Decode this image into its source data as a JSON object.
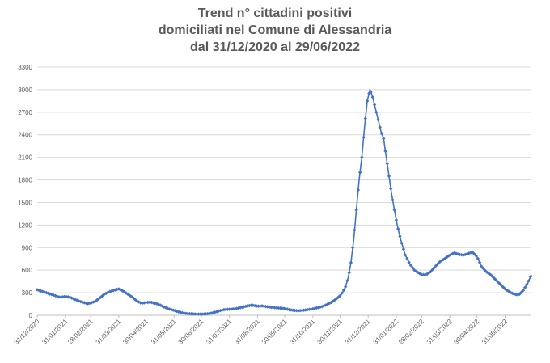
{
  "chart_data": {
    "type": "line",
    "title_lines": [
      "Trend n° cittadini positivi",
      "domiciliati nel Comune di Alessandria",
      "dal 31/12/2020 al 29/06/2022"
    ],
    "xlabel": "",
    "ylabel": "",
    "ylim": [
      0,
      3300
    ],
    "yticks": [
      0,
      300,
      600,
      900,
      1200,
      1500,
      1800,
      2100,
      2400,
      2700,
      3000,
      3300
    ],
    "grid": true,
    "legend": "none",
    "x_range": [
      "2020-12-31",
      "2022-06-29"
    ],
    "x_tick_labels": [
      "31/12/2020",
      "31/01/2021",
      "28/02/2021",
      "31/03/2021",
      "30/04/2021",
      "31/05/2021",
      "30/06/2021",
      "31/07/2021",
      "31/08/2021",
      "30/09/2021",
      "31/10/2021",
      "30/11/2021",
      "31/12/2021",
      "31/01/2022",
      "28/02/2022",
      "31/03/2022",
      "30/04/2022",
      "31/05/2022"
    ],
    "x_tick_dates": [
      "2020-12-31",
      "2021-01-31",
      "2021-02-28",
      "2021-03-31",
      "2021-04-30",
      "2021-05-31",
      "2021-06-30",
      "2021-07-31",
      "2021-08-31",
      "2021-09-30",
      "2021-10-31",
      "2021-11-30",
      "2021-12-31",
      "2022-01-31",
      "2022-02-28",
      "2022-03-31",
      "2022-04-30",
      "2022-05-31"
    ],
    "series_color": "#4472c4",
    "series": [
      {
        "name": "",
        "points": [
          [
            "2020-12-31",
            340
          ],
          [
            "2021-01-05",
            320
          ],
          [
            "2021-01-10",
            300
          ],
          [
            "2021-01-15",
            280
          ],
          [
            "2021-01-20",
            260
          ],
          [
            "2021-01-25",
            240
          ],
          [
            "2021-01-31",
            250
          ],
          [
            "2021-02-05",
            240
          ],
          [
            "2021-02-10",
            215
          ],
          [
            "2021-02-15",
            190
          ],
          [
            "2021-02-20",
            170
          ],
          [
            "2021-02-25",
            155
          ],
          [
            "2021-02-28",
            165
          ],
          [
            "2021-03-05",
            185
          ],
          [
            "2021-03-10",
            230
          ],
          [
            "2021-03-15",
            280
          ],
          [
            "2021-03-20",
            310
          ],
          [
            "2021-03-25",
            330
          ],
          [
            "2021-03-31",
            350
          ],
          [
            "2021-04-05",
            320
          ],
          [
            "2021-04-10",
            280
          ],
          [
            "2021-04-15",
            240
          ],
          [
            "2021-04-20",
            190
          ],
          [
            "2021-04-25",
            160
          ],
          [
            "2021-04-30",
            170
          ],
          [
            "2021-05-05",
            175
          ],
          [
            "2021-05-10",
            160
          ],
          [
            "2021-05-15",
            140
          ],
          [
            "2021-05-20",
            110
          ],
          [
            "2021-05-25",
            85
          ],
          [
            "2021-05-31",
            65
          ],
          [
            "2021-06-05",
            45
          ],
          [
            "2021-06-10",
            30
          ],
          [
            "2021-06-15",
            22
          ],
          [
            "2021-06-20",
            18
          ],
          [
            "2021-06-25",
            15
          ],
          [
            "2021-06-30",
            15
          ],
          [
            "2021-07-05",
            18
          ],
          [
            "2021-07-10",
            25
          ],
          [
            "2021-07-15",
            40
          ],
          [
            "2021-07-20",
            60
          ],
          [
            "2021-07-25",
            75
          ],
          [
            "2021-07-31",
            80
          ],
          [
            "2021-08-05",
            85
          ],
          [
            "2021-08-10",
            95
          ],
          [
            "2021-08-15",
            110
          ],
          [
            "2021-08-20",
            125
          ],
          [
            "2021-08-25",
            135
          ],
          [
            "2021-08-31",
            120
          ],
          [
            "2021-09-05",
            125
          ],
          [
            "2021-09-10",
            115
          ],
          [
            "2021-09-15",
            105
          ],
          [
            "2021-09-20",
            100
          ],
          [
            "2021-09-25",
            95
          ],
          [
            "2021-09-30",
            90
          ],
          [
            "2021-10-05",
            75
          ],
          [
            "2021-10-10",
            65
          ],
          [
            "2021-10-15",
            60
          ],
          [
            "2021-10-20",
            65
          ],
          [
            "2021-10-25",
            75
          ],
          [
            "2021-10-31",
            85
          ],
          [
            "2021-11-05",
            100
          ],
          [
            "2021-11-10",
            115
          ],
          [
            "2021-11-15",
            140
          ],
          [
            "2021-11-20",
            170
          ],
          [
            "2021-11-25",
            210
          ],
          [
            "2021-11-30",
            260
          ],
          [
            "2021-12-03",
            310
          ],
          [
            "2021-12-06",
            380
          ],
          [
            "2021-12-09",
            500
          ],
          [
            "2021-12-12",
            700
          ],
          [
            "2021-12-15",
            1000
          ],
          [
            "2021-12-18",
            1400
          ],
          [
            "2021-12-21",
            1800
          ],
          [
            "2021-12-24",
            2100
          ],
          [
            "2021-12-27",
            2500
          ],
          [
            "2021-12-30",
            2850
          ],
          [
            "2022-01-02",
            3000
          ],
          [
            "2022-01-05",
            2900
          ],
          [
            "2022-01-08",
            2750
          ],
          [
            "2022-01-11",
            2600
          ],
          [
            "2022-01-14",
            2450
          ],
          [
            "2022-01-17",
            2350
          ],
          [
            "2022-01-20",
            2100
          ],
          [
            "2022-01-23",
            1850
          ],
          [
            "2022-01-26",
            1600
          ],
          [
            "2022-01-29",
            1400
          ],
          [
            "2022-02-01",
            1200
          ],
          [
            "2022-02-05",
            1000
          ],
          [
            "2022-02-10",
            800
          ],
          [
            "2022-02-15",
            680
          ],
          [
            "2022-02-20",
            600
          ],
          [
            "2022-02-25",
            560
          ],
          [
            "2022-02-28",
            540
          ],
          [
            "2022-03-05",
            540
          ],
          [
            "2022-03-10",
            580
          ],
          [
            "2022-03-15",
            650
          ],
          [
            "2022-03-20",
            710
          ],
          [
            "2022-03-25",
            750
          ],
          [
            "2022-03-31",
            800
          ],
          [
            "2022-04-05",
            830
          ],
          [
            "2022-04-10",
            810
          ],
          [
            "2022-04-15",
            800
          ],
          [
            "2022-04-20",
            820
          ],
          [
            "2022-04-25",
            840
          ],
          [
            "2022-04-30",
            780
          ],
          [
            "2022-05-05",
            650
          ],
          [
            "2022-05-10",
            580
          ],
          [
            "2022-05-15",
            540
          ],
          [
            "2022-05-20",
            480
          ],
          [
            "2022-05-25",
            420
          ],
          [
            "2022-05-31",
            350
          ],
          [
            "2022-06-05",
            310
          ],
          [
            "2022-06-10",
            280
          ],
          [
            "2022-06-15",
            270
          ],
          [
            "2022-06-20",
            330
          ],
          [
            "2022-06-25",
            430
          ],
          [
            "2022-06-29",
            540
          ]
        ]
      }
    ]
  }
}
